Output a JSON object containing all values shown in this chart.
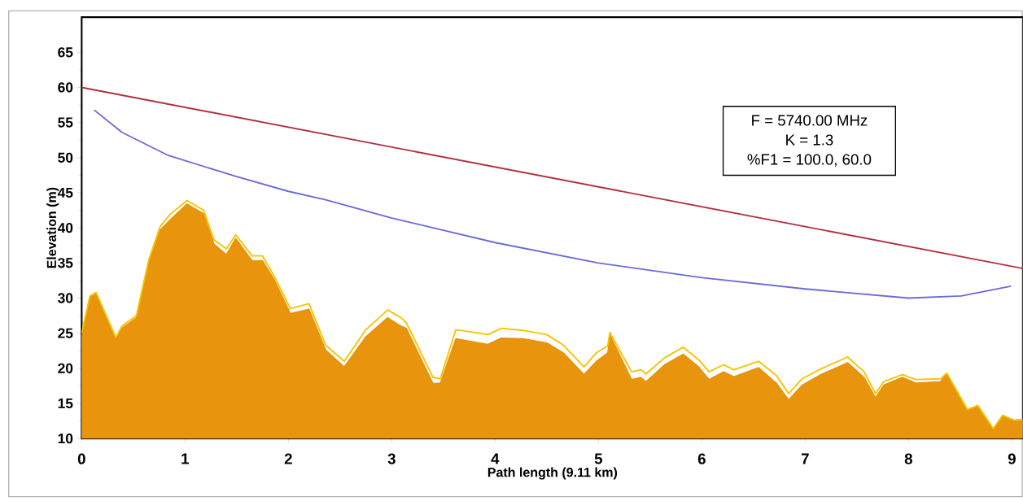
{
  "chart_data": {
    "type": "line",
    "xlabel": "Path length (9.11 km)",
    "ylabel": "Elevation (m)",
    "annotations": [
      "F = 5740.00 MHz",
      "K = 1.3",
      "%F1 = 100.0, 60.0"
    ],
    "xlim": [
      0,
      9.11
    ],
    "ylim": [
      10,
      70
    ],
    "xticks": [
      0,
      1,
      2,
      3,
      4,
      5,
      6,
      7,
      8,
      9
    ],
    "yticks": [
      10,
      15,
      20,
      25,
      30,
      35,
      40,
      45,
      50,
      55,
      60,
      65
    ],
    "series": [
      {
        "type": "area",
        "color": "#e8940c",
        "x": [
          0,
          0.08,
          0.14,
          0.33,
          0.39,
          0.53,
          0.65,
          0.76,
          0.86,
          1.02,
          1.18,
          1.28,
          1.4,
          1.49,
          1.65,
          1.75,
          1.86,
          2.02,
          2.2,
          2.36,
          2.54,
          2.75,
          2.96,
          3.09,
          3.14,
          3.4,
          3.47,
          3.62,
          3.93,
          4.06,
          4.27,
          4.5,
          4.66,
          4.86,
          4.98,
          5.09,
          5.11,
          5.32,
          5.41,
          5.46,
          5.64,
          5.82,
          5.97,
          6.07,
          6.21,
          6.31,
          6.55,
          6.72,
          6.84,
          6.97,
          7.15,
          7.41,
          7.57,
          7.68,
          7.76,
          7.94,
          8.07,
          8.31,
          8.37,
          8.57,
          8.67,
          8.82,
          8.91,
          9.02,
          9.1
        ],
        "values": [
          24.5,
          30.1,
          30.6,
          24.2,
          25.7,
          27.2,
          35.0,
          39.7,
          41.2,
          43.4,
          42.0,
          37.7,
          36.2,
          38.5,
          35.3,
          35.3,
          32.7,
          27.8,
          28.4,
          22.6,
          20.2,
          24.5,
          27.2,
          26.0,
          25.7,
          17.8,
          17.9,
          24.2,
          23.4,
          24.3,
          24.2,
          23.6,
          22.2,
          19.1,
          21.0,
          22.2,
          24.8,
          18.4,
          18.7,
          18.1,
          20.5,
          22.0,
          20.2,
          18.4,
          19.5,
          18.8,
          20.1,
          17.9,
          15.5,
          17.6,
          19.1,
          20.8,
          18.7,
          15.8,
          17.6,
          18.7,
          17.9,
          18.1,
          19.3,
          14.1,
          14.7,
          11.4,
          13.3,
          12.6,
          12.7
        ]
      },
      {
        "color": "#f5c400",
        "x": [
          0,
          0.08,
          0.14,
          0.33,
          0.39,
          0.53,
          0.65,
          0.76,
          0.86,
          1.02,
          1.18,
          1.28,
          1.4,
          1.49,
          1.65,
          1.75,
          1.86,
          2.02,
          2.2,
          2.36,
          2.54,
          2.75,
          2.96,
          3.09,
          3.14,
          3.4,
          3.47,
          3.62,
          3.93,
          4.06,
          4.27,
          4.5,
          4.66,
          4.86,
          4.98,
          5.09,
          5.11,
          5.32,
          5.41,
          5.46,
          5.64,
          5.82,
          5.97,
          6.07,
          6.21,
          6.31,
          6.55,
          6.72,
          6.84,
          6.97,
          7.15,
          7.41,
          7.57,
          7.68,
          7.76,
          7.94,
          8.07,
          8.31,
          8.37,
          8.57,
          8.67,
          8.82,
          8.91,
          9.02,
          9.1
        ],
        "values": [
          25.0,
          30.3,
          30.8,
          24.4,
          26.0,
          27.5,
          35.5,
          40.2,
          42.0,
          43.9,
          42.5,
          38.3,
          37.0,
          39.0,
          36.0,
          36.0,
          33.2,
          28.5,
          29.2,
          23.3,
          21.0,
          25.5,
          28.3,
          27.2,
          26.5,
          18.7,
          18.5,
          25.5,
          24.8,
          25.7,
          25.4,
          24.8,
          23.3,
          20.2,
          22.2,
          23.2,
          25.1,
          19.5,
          19.8,
          19.2,
          21.5,
          23.0,
          21.2,
          19.5,
          20.5,
          19.8,
          21.0,
          19.0,
          16.4,
          18.5,
          19.9,
          21.6,
          19.5,
          16.4,
          18.1,
          19.1,
          18.4,
          18.5,
          19.3,
          14.1,
          14.7,
          11.4,
          13.3,
          12.6,
          12.7
        ]
      },
      {
        "color": "#6b6bd6",
        "x": [
          0.12,
          0.39,
          0.84,
          1.5,
          2.0,
          2.36,
          3,
          4,
          5,
          6,
          7,
          8,
          8.51,
          8.99
        ],
        "values": [
          56.8,
          53.6,
          50.3,
          47.3,
          45.2,
          44.0,
          41.4,
          37.9,
          35.0,
          32.9,
          31.3,
          30.0,
          30.3,
          31.7
        ]
      },
      {
        "color": "#b03040",
        "x": [
          0,
          9.11
        ],
        "values": [
          60,
          34.2
        ]
      }
    ]
  }
}
